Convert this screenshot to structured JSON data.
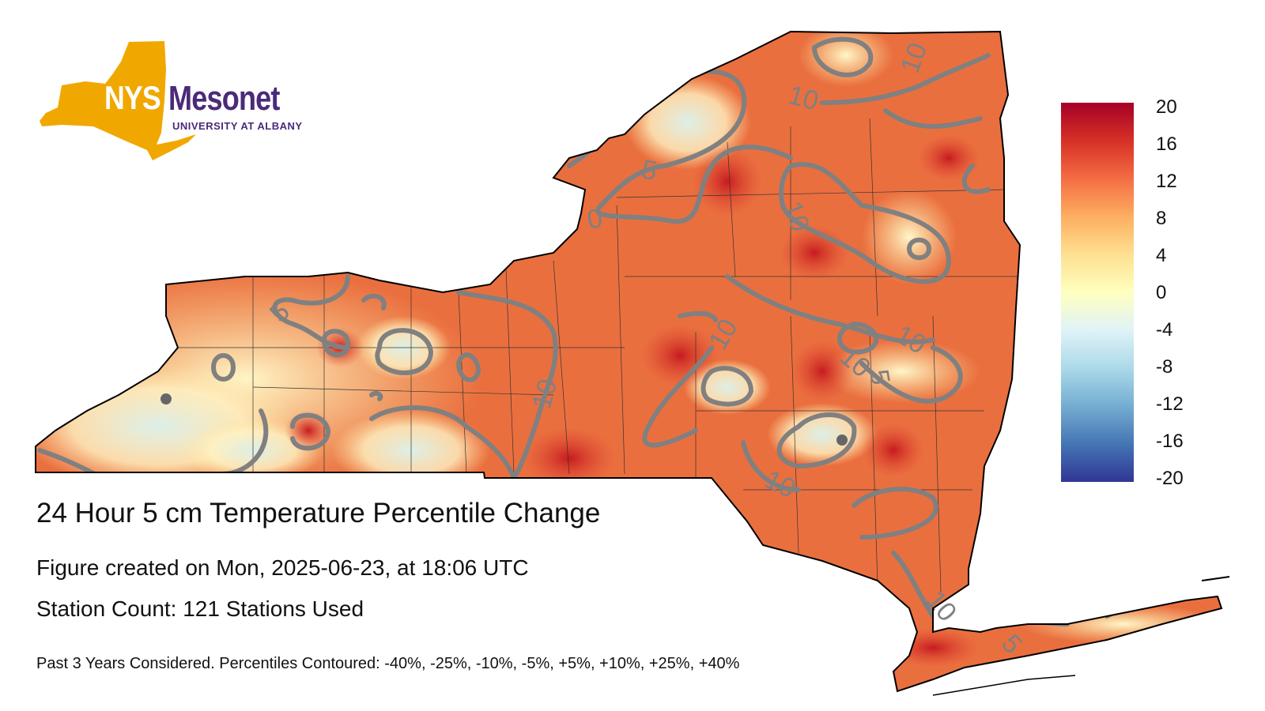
{
  "logo": {
    "nys": "NYS",
    "mesonet": "Mesonet",
    "university": "UNIVERSITY AT ALBANY",
    "gold_color": "#f0a800",
    "purple_color": "#4b2a7a"
  },
  "title": "24 Hour 5 cm Temperature Percentile Change",
  "created": "Figure created on Mon, 2025-06-23, at 18:06 UTC",
  "station_count": "Station Count: 121 Stations Used",
  "footnote": "Past 3 Years Considered. Percentiles Contoured: -40%, -25%, -10%, -5%, +5%, +10%, +25%, +40%",
  "legend": {
    "ticks": [
      "20",
      "16",
      "12",
      "8",
      "4",
      "0",
      "-4",
      "-8",
      "-12",
      "-16",
      "-20"
    ],
    "max": 20,
    "min": -20
  },
  "contour_labels": [
    "10",
    "10",
    "5",
    "0",
    "10",
    "5",
    "10",
    "10",
    "10",
    "10",
    "5",
    "10",
    "10",
    "5"
  ],
  "colors": {
    "contour": "#808080",
    "boundary": "#000000"
  }
}
